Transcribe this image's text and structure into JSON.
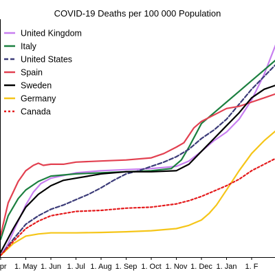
{
  "chart_data": {
    "type": "line",
    "title": "COVID-19 Deaths per 100 000 Population",
    "xlabel": "",
    "ylabel": "",
    "x_tick_labels": [
      "Apr",
      "1. May",
      "1. Jun",
      "1. Jul",
      "1. Aug",
      "1. Sep",
      "1. Oct",
      "1. Nov",
      "1. Dec",
      "1. Jan",
      "1. F"
    ],
    "x_domain": [
      0,
      11
    ],
    "y_domain": [
      0,
      110
    ],
    "y_gridlines": false,
    "legend_position": "top-left",
    "series": [
      {
        "name": "United Kingdom",
        "color": "#c77ef0",
        "dash": "solid",
        "x": [
          0,
          0.3,
          0.6,
          1.0,
          1.3,
          1.6,
          2.0,
          3.0,
          4.0,
          5.0,
          6.0,
          7.0,
          7.5,
          8.0,
          8.5,
          9.0,
          9.5,
          10.0,
          10.5,
          11.0
        ],
        "y": [
          0.5,
          6,
          14,
          24,
          30,
          34,
          36.5,
          39,
          40,
          40.5,
          41,
          42,
          44.5,
          49,
          54,
          58,
          64,
          73,
          85,
          100
        ]
      },
      {
        "name": "Italy",
        "color": "#1b7f3f",
        "dash": "solid",
        "x": [
          0,
          0.3,
          0.7,
          1.0,
          1.5,
          2.0,
          3.0,
          4.0,
          5.0,
          6.0,
          6.8,
          7.2,
          7.5,
          8.0,
          8.5,
          9.0,
          9.5,
          10.0,
          10.5,
          11.0
        ],
        "y": [
          8,
          19,
          27,
          31,
          35,
          37.5,
          38.5,
          39,
          39.5,
          40,
          41,
          45,
          51,
          62,
          67,
          72,
          77,
          82,
          87,
          92
        ]
      },
      {
        "name": "United States",
        "color": "#3b3b78",
        "dash": "dashed",
        "x": [
          0,
          0.5,
          1.0,
          1.5,
          2.0,
          2.5,
          3.0,
          3.5,
          4.0,
          4.5,
          5.0,
          5.5,
          6.0,
          6.5,
          7.0,
          7.5,
          8.0,
          8.5,
          9.0,
          9.5,
          10.0,
          10.5,
          11.0
        ],
        "y": [
          0.5,
          8,
          15,
          19,
          22,
          24,
          26.5,
          29,
          32,
          35.5,
          38.5,
          40,
          42,
          44,
          46.5,
          50,
          55,
          59,
          64,
          71,
          78,
          84,
          90
        ]
      },
      {
        "name": "Spain",
        "color": "#e24050",
        "dash": "solid",
        "x": [
          0,
          0.3,
          0.7,
          1.0,
          1.3,
          1.5,
          1.7,
          2.0,
          2.5,
          3.0,
          4.0,
          5.0,
          6.0,
          6.5,
          7.0,
          7.3,
          7.7,
          8.0,
          8.5,
          9.0,
          9.5,
          10.0,
          10.5,
          11.0
        ],
        "y": [
          10,
          25,
          35,
          40,
          42.5,
          43.5,
          42.5,
          43,
          43,
          44,
          44.5,
          45,
          46,
          48,
          51,
          53,
          60,
          63,
          66,
          69,
          70,
          72,
          74,
          76
        ]
      },
      {
        "name": "Sweden",
        "color": "#000000",
        "dash": "solid",
        "x": [
          0,
          0.5,
          1.0,
          1.5,
          2.0,
          2.5,
          3.0,
          3.5,
          4.0,
          5.0,
          6.0,
          7.0,
          7.5,
          8.0,
          8.5,
          9.0,
          9.5,
          10.0,
          10.5,
          11.0
        ],
        "y": [
          2,
          13,
          23,
          29,
          33,
          35.5,
          36.5,
          37.5,
          38.5,
          39.5,
          39.5,
          40,
          43,
          49,
          55,
          61,
          67,
          74,
          78,
          80
        ]
      },
      {
        "name": "Germany",
        "color": "#f5c518",
        "dash": "solid",
        "x": [
          0,
          0.5,
          1.0,
          1.5,
          2.0,
          3.0,
          4.0,
          5.0,
          6.0,
          7.0,
          7.5,
          8.0,
          8.3,
          8.6,
          9.0,
          9.5,
          10.0,
          10.5,
          11.0
        ],
        "y": [
          0.5,
          6,
          9.5,
          10.5,
          11,
          11,
          11.2,
          11.5,
          12,
          13,
          14.5,
          17,
          20,
          24,
          31,
          40,
          48,
          54,
          59
        ]
      },
      {
        "name": "Canada",
        "color": "#e41a1c",
        "dash": "dotted",
        "x": [
          0,
          0.5,
          1.0,
          1.5,
          2.0,
          2.5,
          3.0,
          4.0,
          5.0,
          6.0,
          7.0,
          7.5,
          8.0,
          8.5,
          9.0,
          9.5,
          10.0,
          10.5,
          11.0
        ],
        "y": [
          0.5,
          7,
          13,
          16.5,
          19,
          20,
          21,
          21.5,
          22.5,
          23,
          24.5,
          26,
          28,
          30.5,
          33,
          36,
          40,
          43,
          46
        ]
      }
    ]
  }
}
